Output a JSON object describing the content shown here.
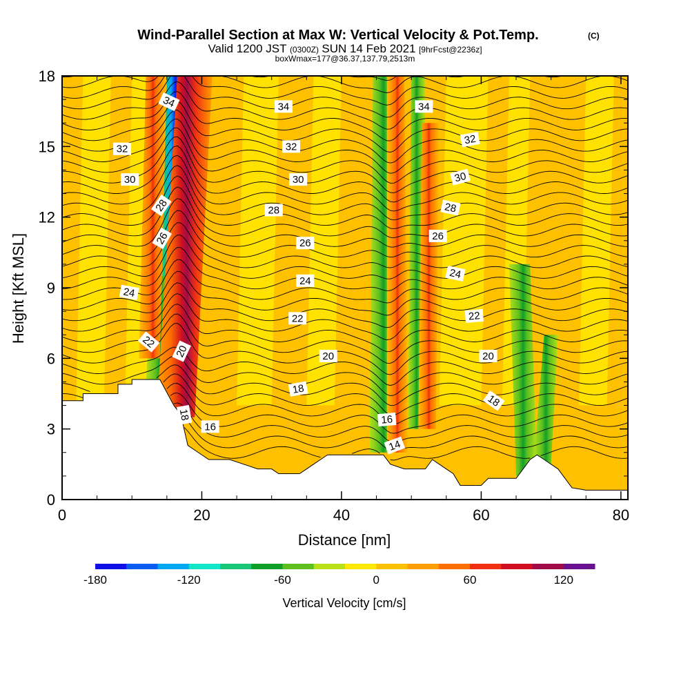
{
  "chart_data": {
    "type": "heatmap",
    "title": "Wind-Parallel Section at Max W: Vertical Velocity & Pot.Temp.",
    "title_mark": "(C)",
    "subtitle_main": "Valid 1200 JST",
    "subtitle_utc": "(0300Z)",
    "subtitle_date": "SUN 14 Feb 2021",
    "subtitle_fcst": "[9hrFcst@2236z]",
    "subtitle2": "boxWmax=177@36.37,137.79,2513m",
    "xlabel": "Distance [nm]",
    "ylabel": "Height [Kft MSL]",
    "xlim": [
      0,
      81
    ],
    "ylim": [
      0,
      18
    ],
    "x_ticks": [
      "0",
      "20",
      "40",
      "60",
      "80"
    ],
    "y_ticks": [
      "0",
      "3",
      "6",
      "9",
      "12",
      "15",
      "18"
    ],
    "colorbar": {
      "label": "Vertical Velocity [cm/s]",
      "tick_labels": [
        "-180",
        "-120",
        "-60",
        "0",
        "60",
        "120"
      ],
      "range": [
        -180,
        140
      ],
      "colors": [
        "#1010e6",
        "#0a5cf0",
        "#00a8f2",
        "#12e6c8",
        "#18c878",
        "#10a028",
        "#5ec020",
        "#b8e018",
        "#ffe800",
        "#ffc000",
        "#ffa000",
        "#ff7000",
        "#f03010",
        "#d01020",
        "#a00c48",
        "#6a1090"
      ]
    },
    "updrafts": [
      {
        "x_base": 17.5,
        "height_kft": 4,
        "peak_cm_s": 120
      },
      {
        "x_base": 47.5,
        "height_kft": 7.5,
        "peak_cm_s": 80
      },
      {
        "x_base": 51,
        "height_kft": 8.5,
        "peak_cm_s": 60
      }
    ],
    "downdrafts": [
      {
        "x_base": 16,
        "height_kft": 9,
        "peak_cm_s": -180
      },
      {
        "x_base": 46,
        "height_kft": 9,
        "peak_cm_s": -70
      }
    ],
    "terrain_kft": [
      [
        0,
        4.2
      ],
      [
        3,
        4.2
      ],
      [
        3,
        4.5
      ],
      [
        8,
        4.5
      ],
      [
        8,
        4.9
      ],
      [
        10,
        4.9
      ],
      [
        10,
        5.1
      ],
      [
        14,
        5.1
      ],
      [
        16,
        4
      ],
      [
        17,
        3.6
      ],
      [
        18,
        2.3
      ],
      [
        19,
        2.1
      ],
      [
        21,
        1.7
      ],
      [
        24,
        1.7
      ],
      [
        26,
        1.5
      ],
      [
        28,
        1.3
      ],
      [
        30,
        1.3
      ],
      [
        31,
        1.1
      ],
      [
        34,
        1.1
      ],
      [
        35,
        1.3
      ],
      [
        36,
        1.5
      ],
      [
        37,
        1.7
      ],
      [
        38,
        1.9
      ],
      [
        40,
        1.9
      ],
      [
        43,
        1.9
      ],
      [
        46,
        1.9
      ],
      [
        47,
        1.5
      ],
      [
        49,
        1.3
      ],
      [
        52,
        1.3
      ],
      [
        53,
        1.7
      ],
      [
        54,
        1.5
      ],
      [
        55,
        1.3
      ],
      [
        56,
        1.1
      ],
      [
        57,
        0.6
      ],
      [
        60,
        0.6
      ],
      [
        61,
        0.9
      ],
      [
        65,
        0.9
      ],
      [
        66,
        1.3
      ],
      [
        67,
        1.7
      ],
      [
        68,
        1.9
      ],
      [
        69,
        1.7
      ],
      [
        70,
        1.5
      ],
      [
        71,
        1.3
      ],
      [
        72,
        0.9
      ],
      [
        73,
        0.5
      ],
      [
        75,
        0.4
      ],
      [
        81,
        0.4
      ]
    ],
    "theta_labels": [
      {
        "text": "34",
        "x": 15.3,
        "y": 16.9,
        "rot": 25
      },
      {
        "text": "34",
        "x": 31.7,
        "y": 16.7,
        "rot": 0
      },
      {
        "text": "34",
        "x": 51.8,
        "y": 16.7,
        "rot": 0
      },
      {
        "text": "32",
        "x": 8.6,
        "y": 14.9,
        "rot": 0
      },
      {
        "text": "32",
        "x": 32.8,
        "y": 15.0,
        "rot": 0
      },
      {
        "text": "32",
        "x": 58.4,
        "y": 15.3,
        "rot": -10
      },
      {
        "text": "30",
        "x": 9.7,
        "y": 13.6,
        "rot": 0
      },
      {
        "text": "30",
        "x": 33.8,
        "y": 13.6,
        "rot": 0
      },
      {
        "text": "30",
        "x": 57.0,
        "y": 13.7,
        "rot": -15
      },
      {
        "text": "28",
        "x": 14.2,
        "y": 12.5,
        "rot": -55
      },
      {
        "text": "28",
        "x": 30.3,
        "y": 12.3,
        "rot": 0
      },
      {
        "text": "28",
        "x": 55.6,
        "y": 12.4,
        "rot": 12
      },
      {
        "text": "26",
        "x": 14.3,
        "y": 11.1,
        "rot": -60
      },
      {
        "text": "26",
        "x": 34.8,
        "y": 10.9,
        "rot": 0
      },
      {
        "text": "26",
        "x": 53.8,
        "y": 11.2,
        "rot": 0
      },
      {
        "text": "24",
        "x": 9.6,
        "y": 8.8,
        "rot": 10
      },
      {
        "text": "24",
        "x": 34.8,
        "y": 9.3,
        "rot": 0
      },
      {
        "text": "24",
        "x": 56.3,
        "y": 9.6,
        "rot": 12
      },
      {
        "text": "22",
        "x": 12.4,
        "y": 6.7,
        "rot": 40
      },
      {
        "text": "22",
        "x": 33.7,
        "y": 7.7,
        "rot": 0
      },
      {
        "text": "22",
        "x": 59.0,
        "y": 7.8,
        "rot": -5
      },
      {
        "text": "20",
        "x": 17.1,
        "y": 6.3,
        "rot": -65
      },
      {
        "text": "20",
        "x": 38.1,
        "y": 6.1,
        "rot": 0
      },
      {
        "text": "20",
        "x": 61.0,
        "y": 6.1,
        "rot": 0
      },
      {
        "text": "18",
        "x": 17.5,
        "y": 3.6,
        "rot": 80
      },
      {
        "text": "18",
        "x": 33.8,
        "y": 4.7,
        "rot": -10
      },
      {
        "text": "18",
        "x": 61.8,
        "y": 4.2,
        "rot": 35
      },
      {
        "text": "16",
        "x": 21.2,
        "y": 3.1,
        "rot": 0
      },
      {
        "text": "16",
        "x": 46.5,
        "y": 3.4,
        "rot": -5
      },
      {
        "text": "14",
        "x": 47.6,
        "y": 2.3,
        "rot": -20
      }
    ]
  }
}
